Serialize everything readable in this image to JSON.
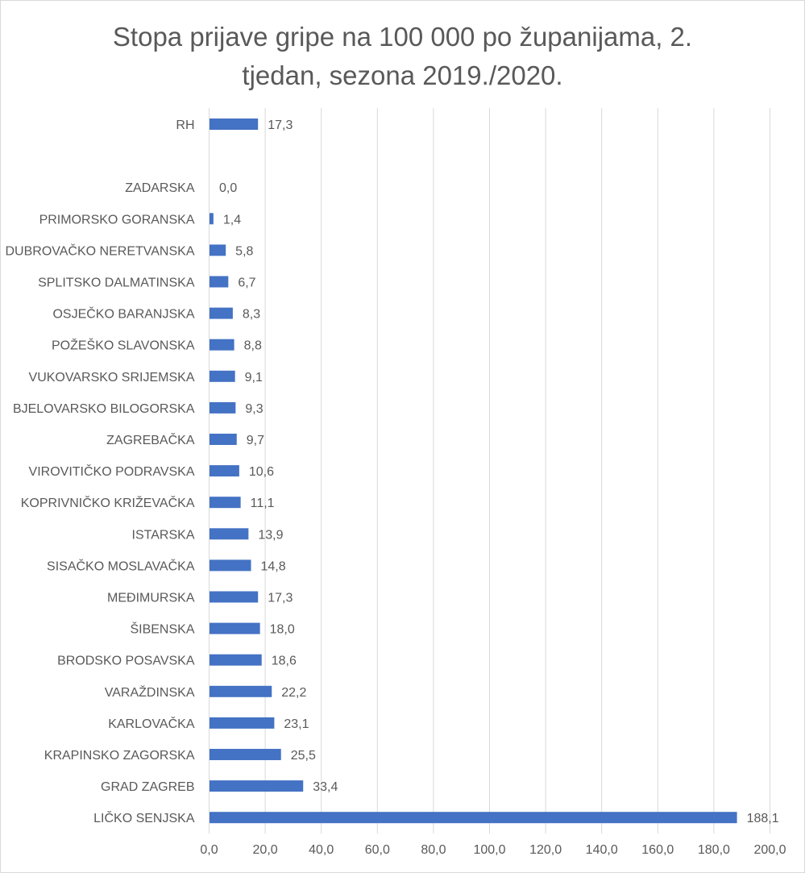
{
  "chart_data": {
    "type": "bar",
    "orientation": "horizontal",
    "title_line1": "Stopa prijave gripe na 100 000 po županijama, 2.",
    "title_line2": "tjedan, sezona 2019./2020.",
    "categories": [
      "RH",
      "",
      "ZADARSKA",
      "PRIMORSKO GORANSKA",
      "DUBROVAČKO NERETVANSKA",
      "SPLITSKO DALMATINSKA",
      "OSJEČKO BARANJSKA",
      "POŽEŠKO SLAVONSKA",
      "VUKOVARSKO SRIJEMSKA",
      "BJELOVARSKO BILOGORSKA",
      "ZAGREBAČKA",
      "VIROVITIČKO PODRAVSKA",
      "KOPRIVNIČKO KRIŽEVAČKA",
      "ISTARSKA",
      "SISAČKO MOSLAVAČKA",
      "MEĐIMURSKA",
      "ŠIBENSKA",
      "BRODSKO POSAVSKA",
      "VARAŽDINSKA",
      "KARLOVAČKA",
      "KRAPINSKO ZAGORSKA",
      "GRAD ZAGREB",
      "LIČKO SENJSKA"
    ],
    "values": [
      17.3,
      null,
      0.0,
      1.4,
      5.8,
      6.7,
      8.3,
      8.8,
      9.1,
      9.3,
      9.7,
      10.6,
      11.1,
      13.9,
      14.8,
      17.3,
      18.0,
      18.6,
      22.2,
      23.1,
      25.5,
      33.4,
      188.1
    ],
    "data_labels": [
      "17,3",
      "",
      "0,0",
      "1,4",
      "5,8",
      "6,7",
      "8,3",
      "8,8",
      "9,1",
      "9,3",
      "9,7",
      "10,6",
      "11,1",
      "13,9",
      "14,8",
      "17,3",
      "18,0",
      "18,6",
      "22,2",
      "23,1",
      "25,5",
      "33,4",
      "188,1"
    ],
    "xlim": [
      0,
      200
    ],
    "x_ticks": [
      0,
      20,
      40,
      60,
      80,
      100,
      120,
      140,
      160,
      180,
      200
    ],
    "x_tick_labels": [
      "0,0",
      "20,0",
      "40,0",
      "60,0",
      "80,0",
      "100,0",
      "120,0",
      "140,0",
      "160,0",
      "180,0",
      "200,0"
    ],
    "grid": "vertical",
    "legend": "none",
    "bar_color": "#4472c4",
    "grid_color": "#d9d9d9",
    "text_color": "#595959"
  }
}
